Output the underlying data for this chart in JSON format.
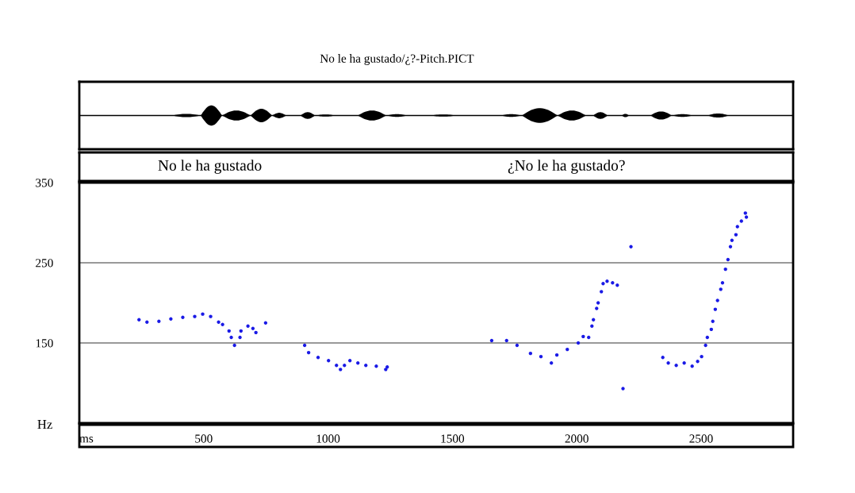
{
  "chart_data": {
    "type": "scatter",
    "title": "No le ha gustado/¿?-Pitch.PICT",
    "xlabel": "ms",
    "ylabel": "Hz",
    "annotations": [
      "No le ha gustado",
      "¿No le ha gustado?"
    ],
    "xlim": [
      0,
      2870
    ],
    "xticks": [
      500,
      1000,
      1500,
      2000,
      2500
    ],
    "ylim": [
      50,
      350
    ],
    "yticks": [
      150,
      250,
      350
    ],
    "grid": "y",
    "marker": "circle",
    "series": [
      {
        "color": "#1a1ae6",
        "x": [
          240,
          272,
          320,
          368,
          416,
          464,
          496,
          528,
          560,
          576,
          602,
          611,
          624,
          646,
          650,
          678,
          698,
          710,
          749,
          906,
          922,
          960,
          1002,
          1034,
          1050,
          1066,
          1088,
          1120,
          1152,
          1194,
          1238,
          1232,
          1658,
          1718,
          1760,
          1814,
          1856,
          1898,
          1920,
          1962,
          2006,
          2026,
          2048,
          2061,
          2067,
          2080,
          2086,
          2099,
          2106,
          2122,
          2144,
          2163,
          2218,
          2186,
          2346,
          2368,
          2400,
          2432,
          2464,
          2486,
          2502,
          2518,
          2525,
          2541,
          2547,
          2557,
          2566,
          2579,
          2586,
          2598,
          2608,
          2618,
          2624,
          2640,
          2646,
          2662,
          2678,
          2682
        ],
        "values": [
          179,
          176,
          177,
          180,
          182,
          183,
          186,
          183,
          176,
          173,
          165,
          157,
          147,
          157,
          165,
          171,
          168,
          163,
          175,
          147,
          138,
          132,
          128,
          122,
          117,
          122,
          128,
          125,
          122,
          121,
          120,
          117,
          153,
          153,
          147,
          137,
          133,
          125,
          135,
          142,
          150,
          158,
          157,
          171,
          179,
          193,
          200,
          214,
          224,
          227,
          225,
          222,
          270,
          93,
          132,
          125,
          122,
          125,
          121,
          127,
          133,
          147,
          157,
          167,
          177,
          192,
          203,
          217,
          225,
          242,
          254,
          270,
          278,
          285,
          295,
          302,
          312,
          307
        ]
      }
    ]
  }
}
